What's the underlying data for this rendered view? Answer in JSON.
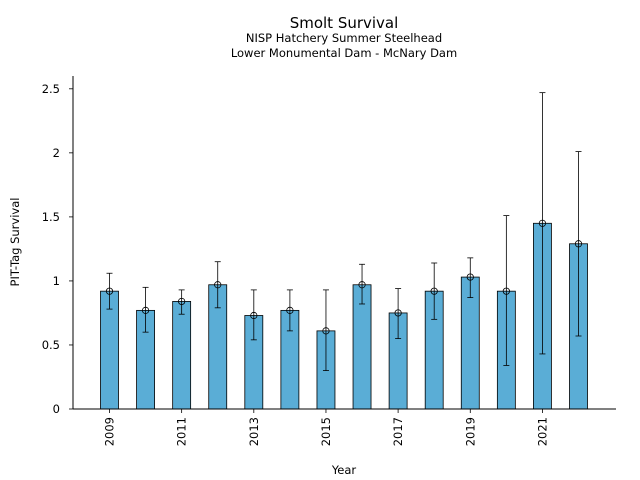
{
  "chart_data": {
    "type": "bar",
    "title": "Smolt Survival",
    "subtitle_lines": [
      "NISP Hatchery Summer Steelhead",
      "Lower Monumental Dam - McNary Dam"
    ],
    "xlabel": "Year",
    "ylabel": "PIT-Tag Survival",
    "ylim": [
      0,
      2.6
    ],
    "yticks": [
      0,
      0.5,
      1,
      1.5,
      2,
      2.5
    ],
    "ytick_labels": [
      "0",
      "0.5",
      "1",
      "1.5",
      "2",
      "2.5"
    ],
    "categories": [
      "2009",
      "2010",
      "2011",
      "2012",
      "2013",
      "2014",
      "2015",
      "2016",
      "2017",
      "2018",
      "2019",
      "2020",
      "2021",
      "2022"
    ],
    "xtick_labels_shown": [
      "2009",
      "2011",
      "2013",
      "2015",
      "2017",
      "2019",
      "2021"
    ],
    "values": [
      0.92,
      0.77,
      0.84,
      0.97,
      0.73,
      0.77,
      0.61,
      0.97,
      0.75,
      0.92,
      1.03,
      0.92,
      1.45,
      1.29
    ],
    "error_low": [
      0.78,
      0.6,
      0.74,
      0.79,
      0.54,
      0.61,
      0.3,
      0.82,
      0.55,
      0.7,
      0.87,
      0.34,
      0.43,
      0.57
    ],
    "error_high": [
      1.06,
      0.95,
      0.93,
      1.15,
      0.93,
      0.93,
      0.93,
      1.13,
      0.94,
      1.14,
      1.18,
      1.51,
      2.47,
      2.01
    ],
    "grid": false,
    "legend": "none",
    "colors": {
      "bar_fill": "#5aadd6",
      "bar_stroke": "#000000",
      "error_bar": "#000000"
    }
  }
}
